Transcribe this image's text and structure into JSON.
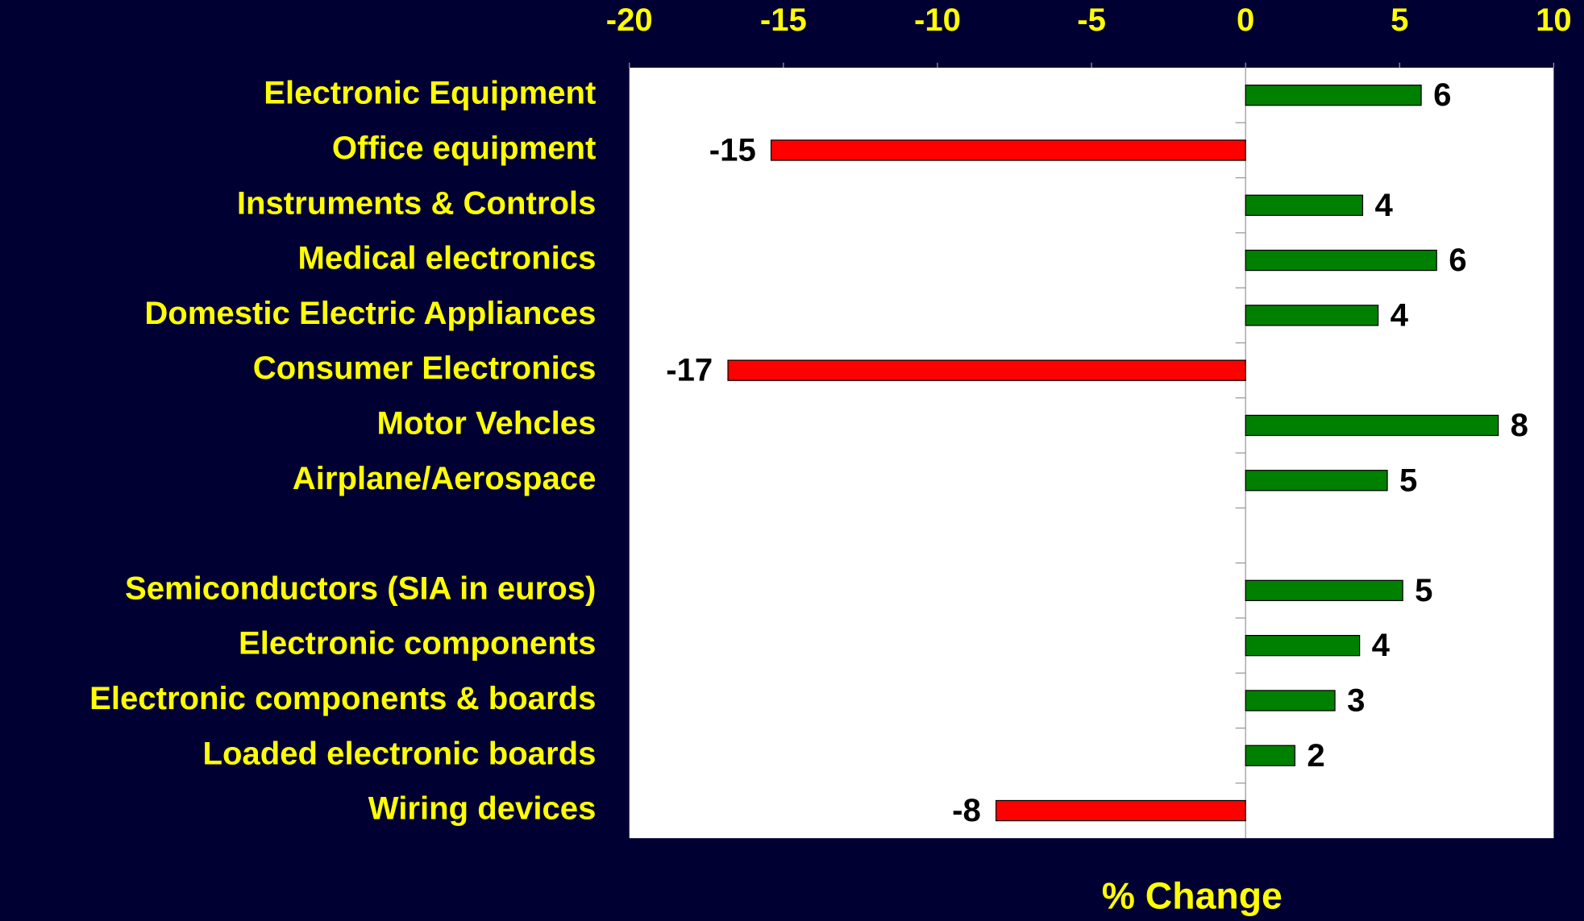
{
  "chart_data": {
    "type": "hbar",
    "x_label": "% Change",
    "categories": [
      "Electronic Equipment",
      "Office equipment",
      "Instruments & Controls",
      "Medical electronics",
      "Domestic Electric Appliances",
      "Consumer Electronics",
      "Motor Vehcles",
      "Airplane/Aerospace",
      null,
      "Semiconductors (SIA in euros)",
      "Electronic components",
      "Electronic components & boards",
      "Loaded electronic boards",
      "Wiring devices"
    ],
    "values": [
      5.7,
      -15.4,
      3.8,
      6.2,
      4.3,
      -16.8,
      8.2,
      4.6,
      null,
      5.1,
      3.7,
      2.9,
      1.6,
      -8.1
    ],
    "value_labels": [
      "6",
      "-15",
      "4",
      "6",
      "4",
      "-17",
      "8",
      "5",
      null,
      "5",
      "4",
      "3",
      "2",
      "-8"
    ],
    "positive_color": "#008000",
    "negative_color": "#ff0000",
    "xlim": [
      -20,
      10
    ],
    "xticks": [
      -20,
      -15,
      -10,
      -5,
      0,
      5,
      10
    ]
  }
}
